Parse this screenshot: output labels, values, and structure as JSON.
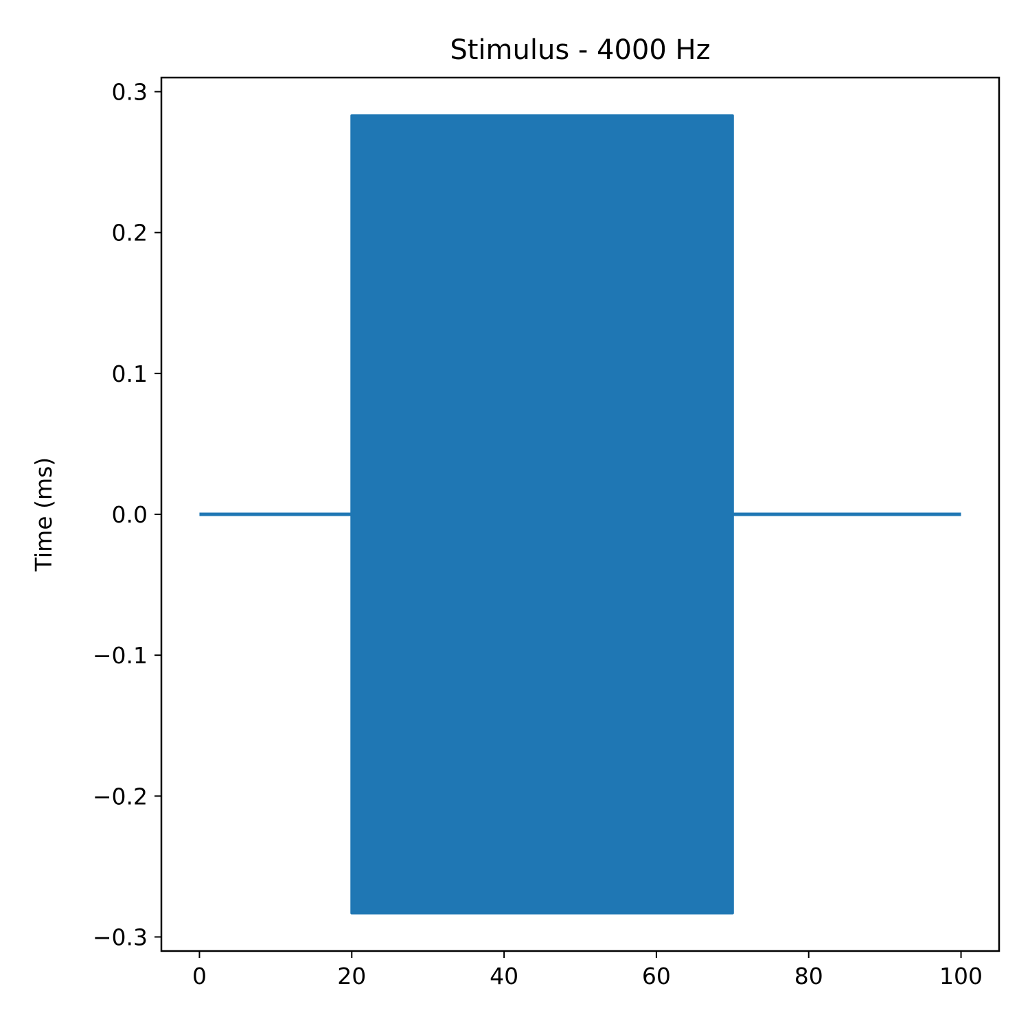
{
  "chart_data": {
    "type": "line",
    "title": "Stimulus - 4000 Hz",
    "xlabel": "",
    "ylabel": "Time (ms)",
    "xlim": [
      -5,
      105
    ],
    "ylim": [
      -0.31,
      0.31
    ],
    "x_ticks": [
      0,
      20,
      40,
      60,
      80,
      100
    ],
    "x_tick_labels": [
      "0",
      "20",
      "40",
      "60",
      "80",
      "100"
    ],
    "y_ticks": [
      0.3,
      0.2,
      0.1,
      0.0,
      -0.1,
      -0.2,
      -0.3
    ],
    "y_tick_labels": [
      "0.3",
      "0.2",
      "0.1",
      "0.0",
      "−0.1",
      "−0.2",
      "−0.3"
    ],
    "grid": false,
    "series": [
      {
        "color": "#1f77b4",
        "segments": [
          {
            "kind": "flat",
            "x_start": 0,
            "x_end": 20,
            "y": 0.0
          },
          {
            "kind": "tone",
            "x_start": 20,
            "x_end": 70,
            "amplitude": 0.283,
            "frequency_hz": 4000
          },
          {
            "kind": "flat",
            "x_start": 70,
            "x_end": 100,
            "y": 0.0
          }
        ]
      }
    ]
  }
}
